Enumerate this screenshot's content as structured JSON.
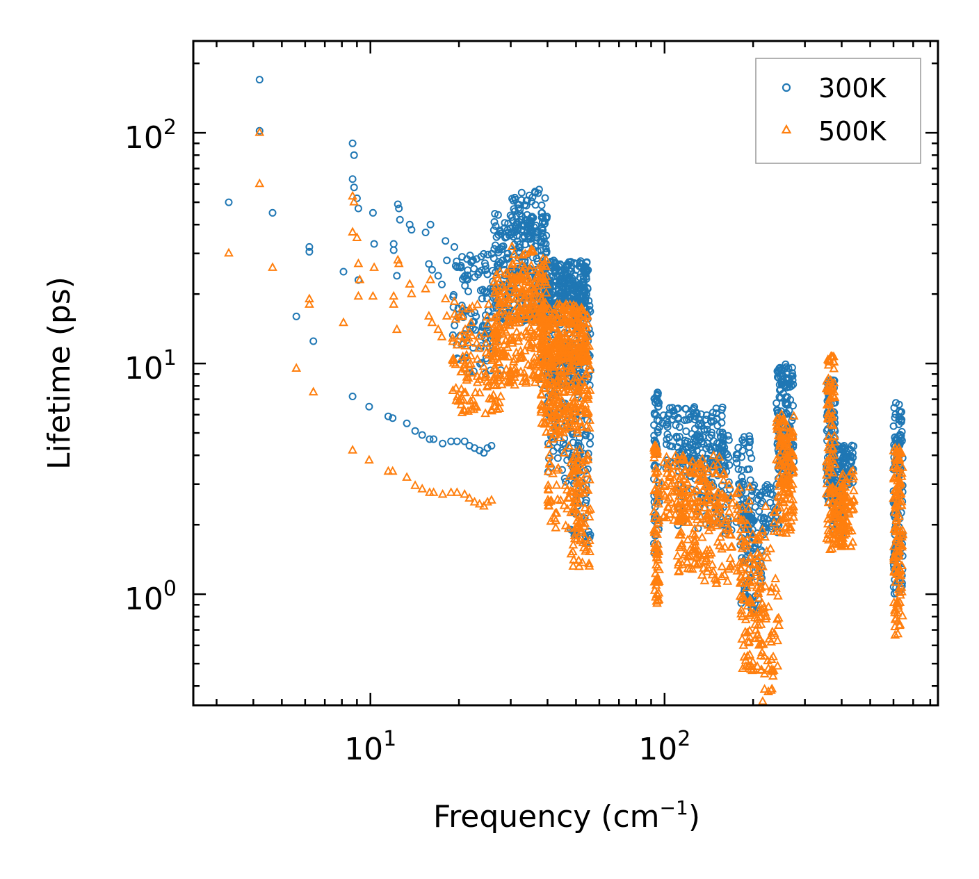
{
  "chart_data": {
    "type": "scatter",
    "title": "",
    "xlabel": "Frequency (cm",
    "xlabel_sup": "−1",
    "xlabel_close": ")",
    "ylabel": "Lifetime (ps)",
    "xscale": "log",
    "yscale": "log",
    "xlim": [
      2.5,
      850
    ],
    "ylim": [
      0.33,
      250
    ],
    "x_ticks": [
      {
        "value": 10,
        "base": "10",
        "exp": "1"
      },
      {
        "value": 100,
        "base": "10",
        "exp": "2"
      }
    ],
    "y_ticks": [
      {
        "value": 1,
        "base": "10",
        "exp": "0"
      },
      {
        "value": 10,
        "base": "10",
        "exp": "1"
      },
      {
        "value": 100,
        "base": "10",
        "exp": "2"
      }
    ],
    "legend_position": "top-right",
    "series": [
      {
        "name": "300K",
        "marker": "circle",
        "color": "#1f77b4",
        "points": [
          [
            3.3,
            50
          ],
          [
            4.2,
            170
          ],
          [
            4.2,
            102
          ],
          [
            4.65,
            45
          ],
          [
            5.6,
            16
          ],
          [
            6.2,
            32
          ],
          [
            6.2,
            30.5
          ],
          [
            6.4,
            12.5
          ],
          [
            8.1,
            25
          ],
          [
            8.7,
            90
          ],
          [
            8.7,
            63
          ],
          [
            8.8,
            80
          ],
          [
            8.8,
            58
          ],
          [
            9.0,
            52
          ],
          [
            9.1,
            47
          ],
          [
            9.1,
            23
          ],
          [
            10.2,
            45
          ],
          [
            10.3,
            33
          ],
          [
            12.0,
            33
          ],
          [
            12.0,
            31
          ],
          [
            12.3,
            24
          ],
          [
            12.4,
            49
          ],
          [
            12.5,
            47
          ],
          [
            12.6,
            42
          ],
          [
            13.6,
            40
          ],
          [
            13.8,
            38
          ],
          [
            15.4,
            37
          ],
          [
            15.8,
            27
          ],
          [
            16.0,
            40
          ],
          [
            16.2,
            25.5
          ],
          [
            17.0,
            24
          ],
          [
            17.5,
            22
          ],
          [
            18.0,
            34
          ],
          [
            18.2,
            28
          ],
          [
            19.3,
            32
          ],
          [
            19.5,
            26.5
          ],
          [
            20.5,
            29
          ],
          [
            21.0,
            24
          ],
          [
            22.0,
            27.5
          ],
          [
            8.7,
            7.2
          ],
          [
            9.9,
            6.5
          ],
          [
            11.5,
            5.9
          ],
          [
            11.9,
            5.8
          ],
          [
            13.3,
            5.5
          ],
          [
            14.2,
            5.1
          ],
          [
            15.0,
            4.9
          ],
          [
            15.9,
            4.7
          ],
          [
            16.4,
            4.7
          ],
          [
            17.6,
            4.5
          ],
          [
            18.8,
            4.6
          ],
          [
            19.7,
            4.6
          ],
          [
            20.9,
            4.6
          ],
          [
            21.7,
            4.4
          ],
          [
            22.6,
            4.3
          ],
          [
            23.5,
            4.2
          ],
          [
            24.3,
            4.1
          ],
          [
            25.0,
            4.3
          ],
          [
            25.8,
            4.4
          ]
        ],
        "clusters": [
          {
            "x": [
              19,
              28
            ],
            "y": [
              9,
              30
            ],
            "n": 120
          },
          {
            "x": [
              26,
              40
            ],
            "y": [
              15,
              45
            ],
            "n": 260
          },
          {
            "x": [
              30,
              40
            ],
            "y": [
              35,
              58
            ],
            "n": 60
          },
          {
            "x": [
              38,
              55
            ],
            "y": [
              18,
              28
            ],
            "n": 240
          },
          {
            "x": [
              38,
              56
            ],
            "y": [
              8,
              20
            ],
            "n": 200
          },
          {
            "x": [
              40,
              52
            ],
            "y": [
              3,
              12
            ],
            "n": 90
          },
          {
            "x": [
              48,
              56
            ],
            "y": [
              1.6,
              6
            ],
            "n": 70
          },
          {
            "x": [
              92,
              96
            ],
            "y": [
              1.5,
              7.5
            ],
            "n": 70
          },
          {
            "x": [
              98,
              160
            ],
            "y": [
              3.5,
              6.5
            ],
            "n": 150
          },
          {
            "x": [
              110,
              200
            ],
            "y": [
              1.8,
              5
            ],
            "n": 160
          },
          {
            "x": [
              180,
              215
            ],
            "y": [
              0.85,
              3
            ],
            "n": 100
          },
          {
            "x": [
              215,
              245
            ],
            "y": [
              1.8,
              3
            ],
            "n": 40
          },
          {
            "x": [
              240,
              275
            ],
            "y": [
              3,
              10
            ],
            "n": 140
          },
          {
            "x": [
              355,
              380
            ],
            "y": [
              2.5,
              8.5
            ],
            "n": 90
          },
          {
            "x": [
              370,
              410
            ],
            "y": [
              1.8,
              4.5
            ],
            "n": 70
          },
          {
            "x": [
              400,
              440
            ],
            "y": [
              3,
              4.5
            ],
            "n": 50
          },
          {
            "x": [
              600,
              645
            ],
            "y": [
              1,
              6.8
            ],
            "n": 130
          }
        ]
      },
      {
        "name": "500K",
        "marker": "triangle",
        "color": "#ff7f0e",
        "points": [
          [
            3.3,
            30
          ],
          [
            4.2,
            100
          ],
          [
            4.2,
            60
          ],
          [
            4.65,
            26
          ],
          [
            5.6,
            9.5
          ],
          [
            6.2,
            19
          ],
          [
            6.2,
            18
          ],
          [
            6.4,
            7.5
          ],
          [
            8.1,
            15
          ],
          [
            8.7,
            53
          ],
          [
            8.7,
            37
          ],
          [
            8.8,
            50
          ],
          [
            9.0,
            35
          ],
          [
            9.1,
            27
          ],
          [
            9.1,
            19.5
          ],
          [
            9.2,
            23
          ],
          [
            10.2,
            19.5
          ],
          [
            10.3,
            26
          ],
          [
            12.0,
            19.5
          ],
          [
            12.0,
            18
          ],
          [
            12.3,
            14
          ],
          [
            12.4,
            28
          ],
          [
            12.5,
            27
          ],
          [
            13.6,
            22
          ],
          [
            13.8,
            20
          ],
          [
            15.4,
            21
          ],
          [
            15.8,
            16
          ],
          [
            16.0,
            23
          ],
          [
            16.2,
            15
          ],
          [
            17.0,
            14
          ],
          [
            17.5,
            13
          ],
          [
            18.0,
            19
          ],
          [
            18.2,
            16
          ],
          [
            19.3,
            18.5
          ],
          [
            19.5,
            15.5
          ],
          [
            20.5,
            16
          ],
          [
            21.0,
            14
          ],
          [
            22.0,
            15
          ],
          [
            8.7,
            4.2
          ],
          [
            9.9,
            3.8
          ],
          [
            11.5,
            3.4
          ],
          [
            11.9,
            3.4
          ],
          [
            13.3,
            3.2
          ],
          [
            14.2,
            2.95
          ],
          [
            15.0,
            2.85
          ],
          [
            15.9,
            2.75
          ],
          [
            16.4,
            2.75
          ],
          [
            17.6,
            2.7
          ],
          [
            18.8,
            2.75
          ],
          [
            19.7,
            2.75
          ],
          [
            20.9,
            2.7
          ],
          [
            21.7,
            2.6
          ],
          [
            22.6,
            2.5
          ],
          [
            23.5,
            2.45
          ],
          [
            24.3,
            2.4
          ],
          [
            25.0,
            2.5
          ],
          [
            25.8,
            2.55
          ]
        ],
        "clusters": [
          {
            "x": [
              19,
              28
            ],
            "y": [
              6,
              18
            ],
            "n": 120
          },
          {
            "x": [
              26,
              40
            ],
            "y": [
              8,
              25
            ],
            "n": 260
          },
          {
            "x": [
              30,
              40
            ],
            "y": [
              15,
              32
            ],
            "n": 60
          },
          {
            "x": [
              38,
              55
            ],
            "y": [
              10,
              18
            ],
            "n": 240
          },
          {
            "x": [
              38,
              56
            ],
            "y": [
              5,
              12
            ],
            "n": 200
          },
          {
            "x": [
              40,
              52
            ],
            "y": [
              1.9,
              7
            ],
            "n": 90
          },
          {
            "x": [
              48,
              56
            ],
            "y": [
              1.3,
              4
            ],
            "n": 70
          },
          {
            "x": [
              92,
              96
            ],
            "y": [
              0.9,
              4.5
            ],
            "n": 70
          },
          {
            "x": [
              98,
              160
            ],
            "y": [
              2,
              4
            ],
            "n": 150
          },
          {
            "x": [
              110,
              200
            ],
            "y": [
              1.1,
              3
            ],
            "n": 160
          },
          {
            "x": [
              180,
              215
            ],
            "y": [
              0.45,
              1.8
            ],
            "n": 100
          },
          {
            "x": [
              215,
              245
            ],
            "y": [
              0.33,
              2.5
            ],
            "n": 50
          },
          {
            "x": [
              240,
              275
            ],
            "y": [
              1.8,
              6
            ],
            "n": 140
          },
          {
            "x": [
              355,
              380
            ],
            "y": [
              1.5,
              11
            ],
            "n": 90
          },
          {
            "x": [
              370,
              410
            ],
            "y": [
              1.6,
              3
            ],
            "n": 70
          },
          {
            "x": [
              400,
              440
            ],
            "y": [
              1.6,
              3.5
            ],
            "n": 50
          },
          {
            "x": [
              600,
              645
            ],
            "y": [
              0.65,
              4.3
            ],
            "n": 130
          }
        ]
      }
    ]
  }
}
